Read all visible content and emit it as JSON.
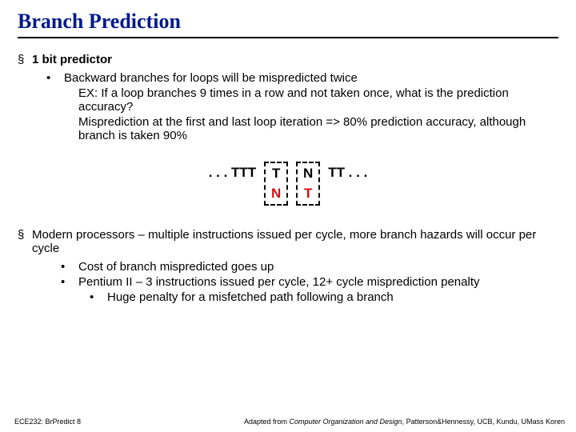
{
  "title": {
    "text": "Branch Prediction",
    "color": "#001a8a",
    "fontsize": 26
  },
  "body_fontsize": 15,
  "bullets": {
    "l1a": "1 bit predictor",
    "l2a": "Backward branches for loops will be mispredicted twice",
    "l3a": "EX: If a loop branches 9 times in a row and not taken once, what is the prediction accuracy?",
    "l3b": "Misprediction at the first and last loop iteration => 80% prediction accuracy, although branch is taken 90%"
  },
  "diagram": {
    "font_size": 17,
    "seq_left": ". . .  TTT",
    "seq_right": "TT  . . .",
    "box1_top": "T",
    "box1_bot": "N",
    "box2_top": "N",
    "box2_bot": "T",
    "top_color": "#000000",
    "bot_color": "#d01010",
    "box_border_color": "#000000"
  },
  "bullets2": {
    "l1": "Modern processors – multiple instructions issued per cycle, more branch hazards will occur per cycle",
    "l2a": "Cost of branch mispredicted goes up",
    "l2b": "Pentium II – 3 instructions issued per cycle, 12+ cycle misprediction penalty",
    "l3a": "Huge penalty for a misfetched path following a branch"
  },
  "footer": {
    "left": "ECE232: BrPredict 8",
    "right_prefix": "Adapted from ",
    "right_italic": "Computer Organization and Design",
    "right_suffix": ", Patterson&Hennessy, UCB, Kundu, UMass   Koren",
    "fontsize": 9,
    "color": "#000000"
  },
  "colors": {
    "background": "#ffffff",
    "text": "#000000"
  }
}
